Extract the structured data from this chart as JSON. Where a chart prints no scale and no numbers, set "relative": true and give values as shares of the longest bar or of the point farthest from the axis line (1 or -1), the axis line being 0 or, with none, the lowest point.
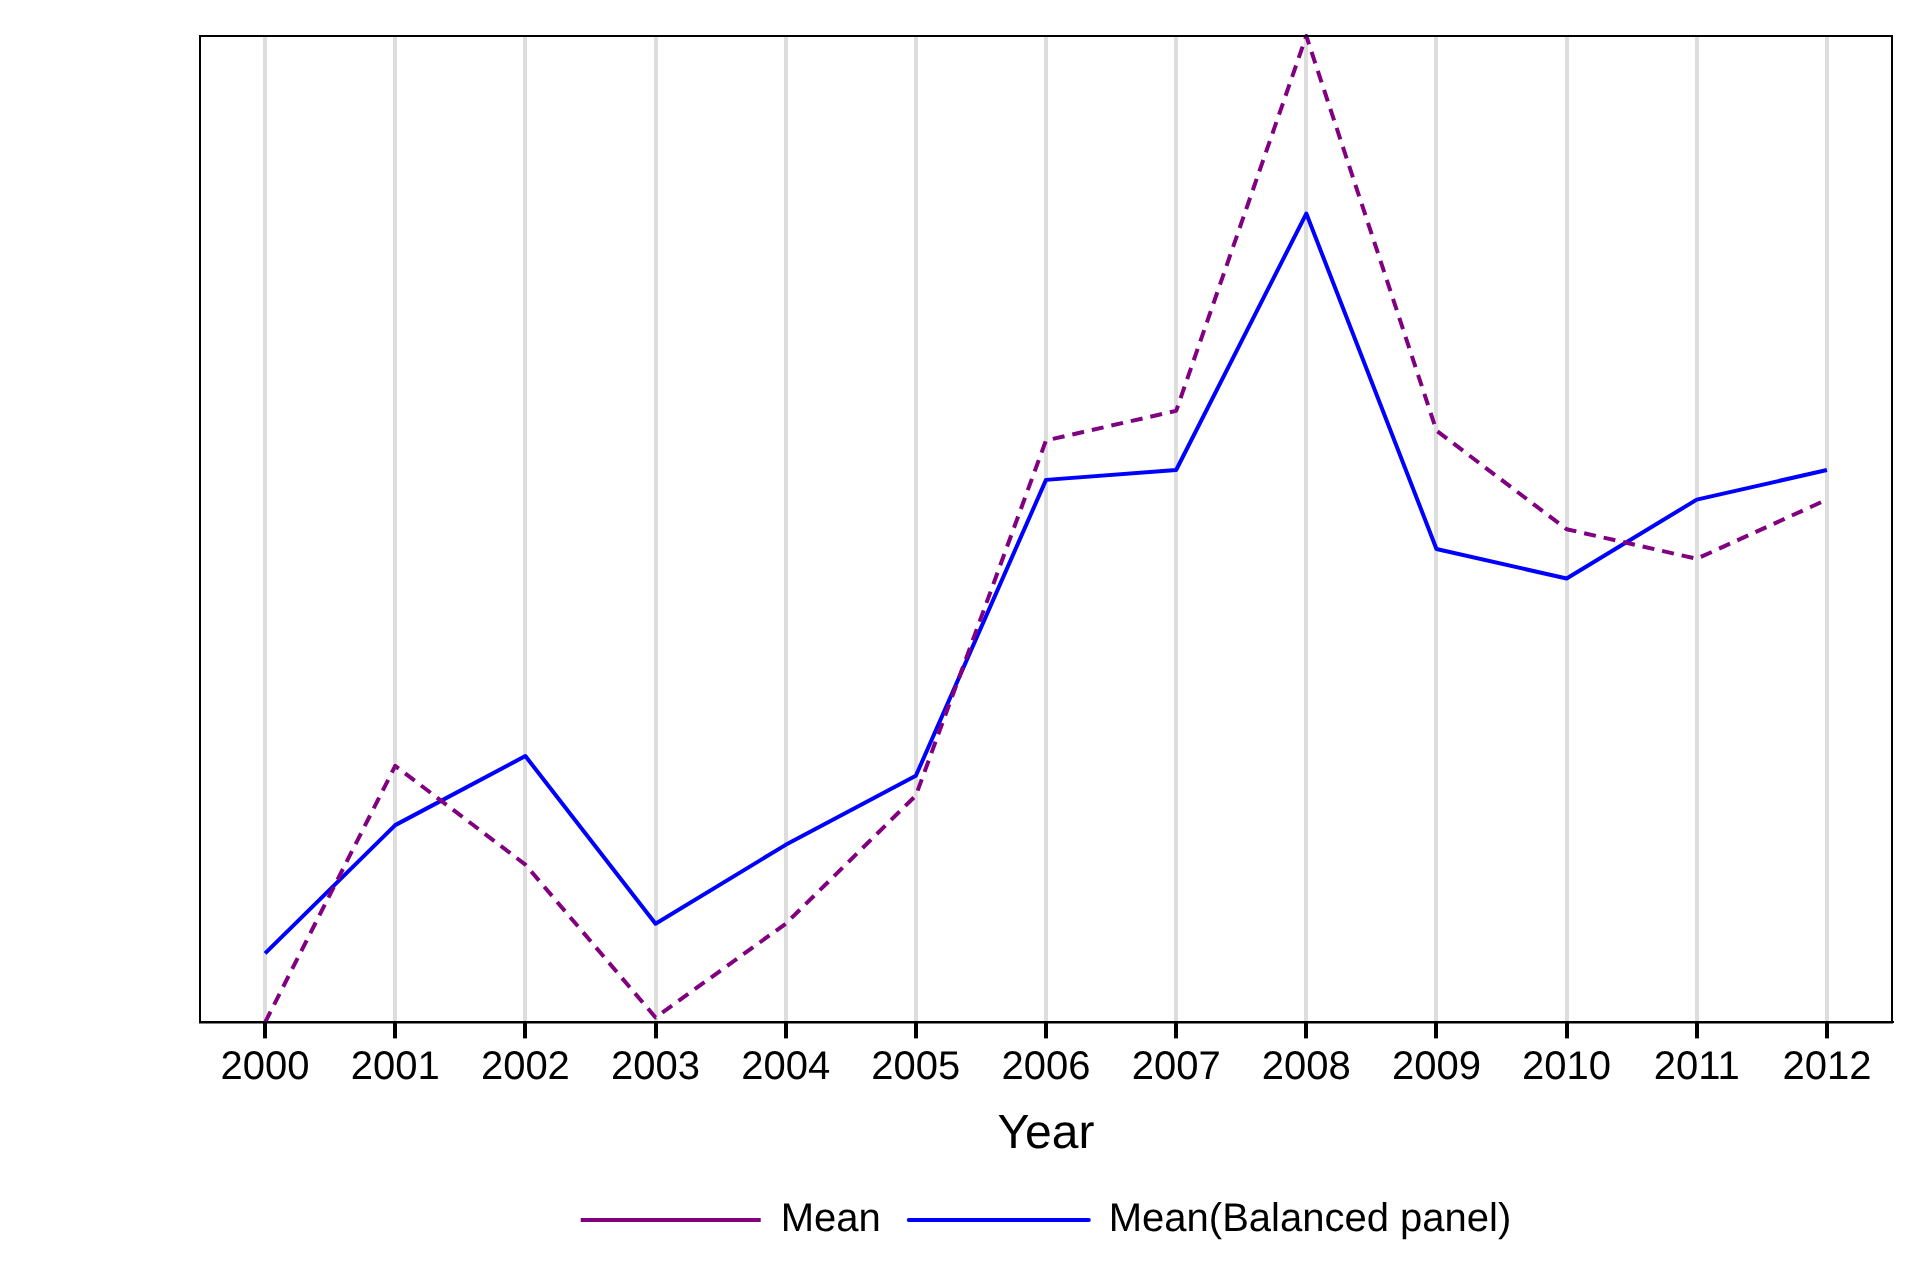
{
  "chart_data": {
    "type": "line",
    "relative": true,
    "xlabel": "Year",
    "categories": [
      "2000",
      "2001",
      "2002",
      "2003",
      "2004",
      "2005",
      "2006",
      "2007",
      "2008",
      "2009",
      "2010",
      "2011",
      "2012"
    ],
    "series": [
      {
        "name": "Mean",
        "color": "#800080",
        "line_style": "dashed",
        "values": [
          0,
          0.26,
          0.16,
          0.005,
          0.1,
          0.23,
          0.59,
          0.62,
          1,
          0.6,
          0.5,
          0.47,
          0.53
        ]
      },
      {
        "name": "Mean(Balanced panel)",
        "color": "#0000ff",
        "line_style": "solid",
        "values": [
          0.07,
          0.2,
          0.27,
          0.1,
          0.18,
          0.25,
          0.55,
          0.56,
          0.82,
          0.48,
          0.45,
          0.53,
          0.56
        ]
      }
    ],
    "grid": "x",
    "legend": "bottom",
    "marker": "none"
  }
}
